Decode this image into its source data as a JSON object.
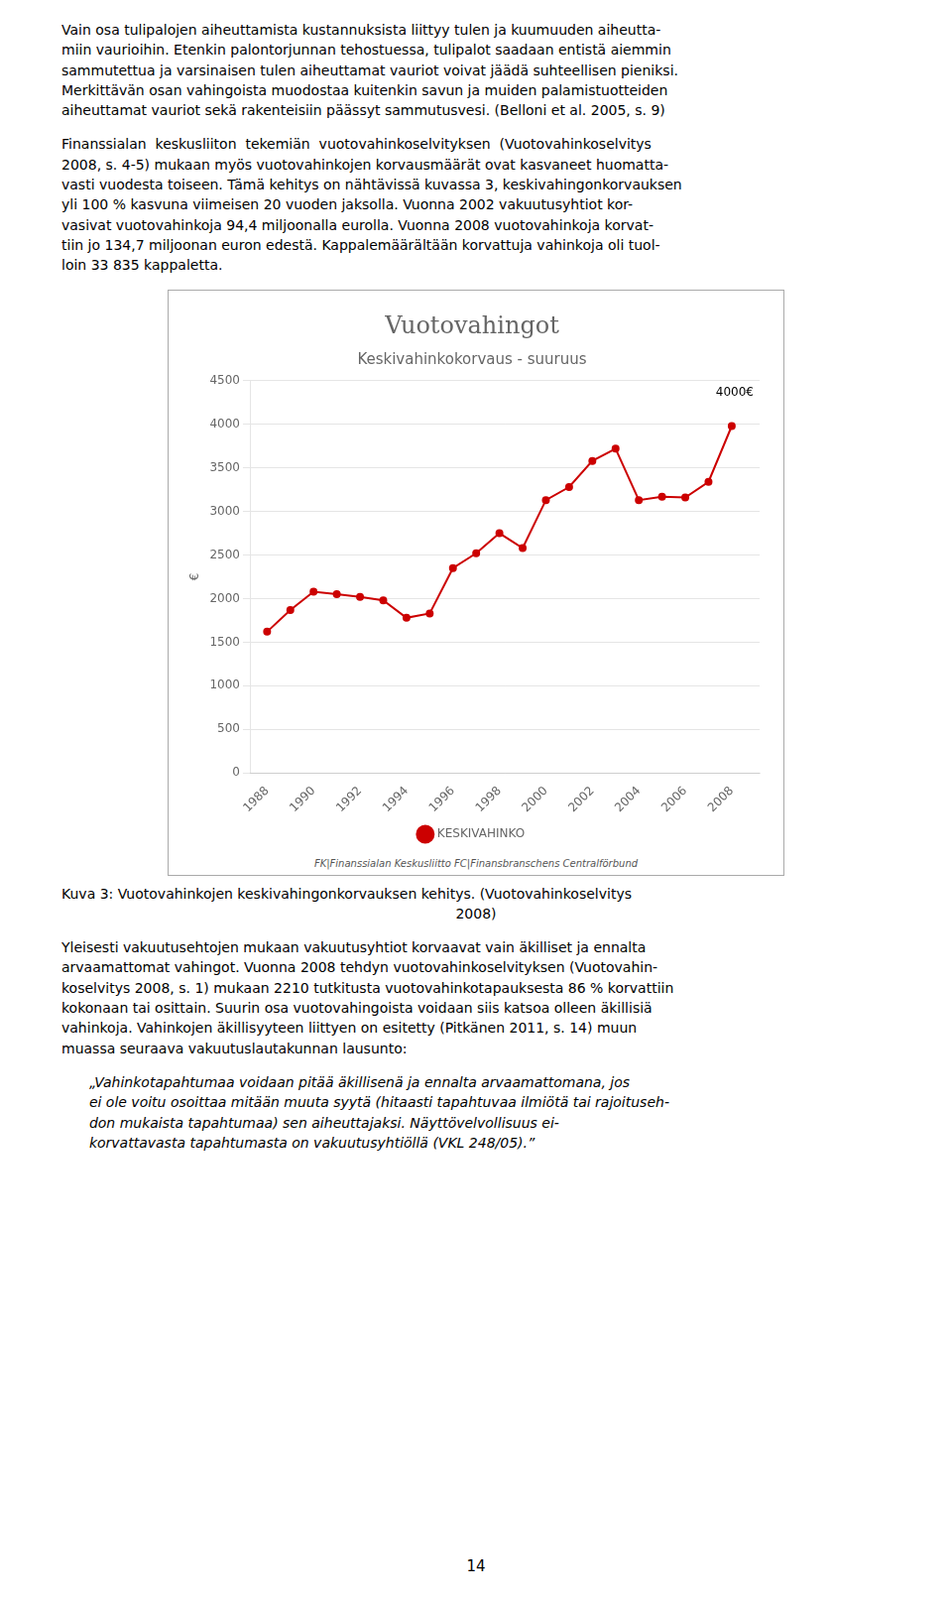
{
  "chart_data": {
    "type": "line",
    "title": "Vuotovahingot",
    "subtitle": "Keskivahinkokorvaus - suuruus",
    "x": [
      1988,
      1989,
      1990,
      1991,
      1992,
      1993,
      1994,
      1995,
      1996,
      1997,
      1998,
      1999,
      2000,
      2001,
      2002,
      2003,
      2004,
      2005,
      2006,
      2007,
      2008
    ],
    "series": [
      {
        "name": "KESKIVAHINKO",
        "color": "#CC0000",
        "marker": "circle",
        "values": [
          1620,
          1870,
          2080,
          2050,
          2020,
          1980,
          1780,
          1830,
          2350,
          2520,
          2750,
          2580,
          3130,
          3280,
          3580,
          3720,
          3130,
          3170,
          3160,
          3340,
          3980
        ]
      }
    ],
    "xlim": [
      1987.3,
      2009.2
    ],
    "xticks": [
      1988,
      1990,
      1992,
      1994,
      1996,
      1998,
      2000,
      2002,
      2004,
      2006,
      2008
    ],
    "ylim": [
      0,
      4500
    ],
    "yticks": [
      0,
      500,
      1000,
      1500,
      2000,
      2500,
      3000,
      3500,
      4000,
      4500
    ],
    "ylabel": "€",
    "annotation": "4000€",
    "footer": "FK|Finanssialan Keskusliitto  FC|Finansbranschens Centralförbund",
    "grid": "y",
    "legend": "bottom"
  },
  "upper_text": "Vain osa tulipalojen aiheuttamista kustannuksista liittyy tulen ja kuumuuden aiheutta-\nmiin vaurioihin. Etenkin palontorjunnan tehostuessa, tulipalot saadaan entistä aiemmin\nsammutettua ja varsinaisen tulen aiheuttamat vauriot voivat jäädä suhteellisen pieniksi.\nMerkittävän osan vahingoista muodostaa kuitenkin savun ja muiden palamistuotteiden\naiheuttamat vauriot sekä rakenteisiin päässyt sammutusvesi. (Belloni et al. 2005, s. 9)",
  "middle_text": "Finanssialan  keskusliiton  tekemiän  vuotovahinkoselvityksen  (Vuotovahinkoselvitys\n2008, s. 4-5) mukaan myös vuotovahinkojen korvausmäärät ovat kasvaneet huomatta-\nvasti vuodesta toiseen. Tämä kehitys on nähtävissä kuvassa 3, keskivahingonkorvauksen\nyli 100 % kasvuna viimeisen 20 vuoden jaksolla. Vuonna 2002 vakuutusyhtiot kor-\nvasivat vuotovahinkoja 94,4 miljoonalla eurolla. Vuonna 2008 vuotovahinkoja korvat-\ntiin jo 134,7 miljoonan euron edestä. Kappalemäärältään korvattuja vahinkoja oli tuol-\nloin 33 835 kappaletta.",
  "caption": [
    "Kuva 3: Vuotovahinkojen keskivahingonkorvauksen kehitys. (Vuotovahinkoselvitys",
    "2008)"
  ],
  "lower_text": "Yleisesti vakuutusehtojen mukaan vakuutusyhtiot korvaavat vain äkilliset ja ennalta\narvaamattomat vahingot. Vuonna 2008 tehdyn vuotovahinkoselvityksen (Vuotovahin-\nkoselvitys 2008, s. 1) mukaan 2210 tutkitusta vuotovahinkotapauksesta 86 % korvattiin\nkokonaan tai osittain. Suurin osa vuotovahingoista voidaan siis katsoa olleen äkillisiä\nvahinkoja. Vahinkojen äkillisyyteen liittyen on esitetty (Pitkänen 2011, s. 14) muun\nmuassa seuraava vakuutuslautakunnan lausunto:",
  "quote_text": "  „Vahinkotapahtumaa voidaan pitää äkillisenä ja ennalta arvaamattomana, jos\n  ei ole voitu osoittaa mitään muuta syytä (hitaasti tapahtuvaa ilmiötä tai rajoituseh-\n  don mukaista tapahtumaa) sen aiheuttajaksi. Näyttövelvollisuus ei-\n  korvattavasta tapahtumasta on vakuutusyhtiöllä (VKL 248/05).”",
  "page_number": "14"
}
